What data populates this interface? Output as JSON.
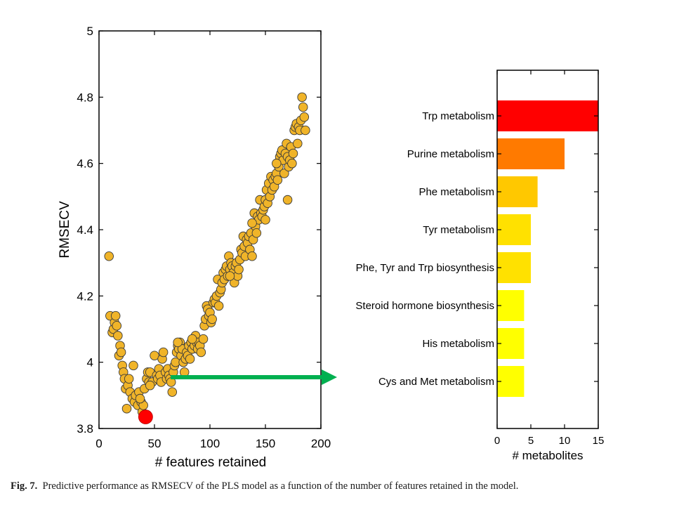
{
  "chart_data": [
    {
      "type": "scatter",
      "xlabel": "# features retained",
      "ylabel": "RMSECV",
      "xlim": [
        0,
        200
      ],
      "ylim": [
        3.8,
        5.0
      ],
      "xticks": [
        "0",
        "50",
        "100",
        "150",
        "200"
      ],
      "yticks": [
        "3.8",
        "4",
        "4.2",
        "4.4",
        "4.6",
        "4.8",
        "5"
      ],
      "grid": false,
      "marker_color": "#f0b429",
      "highlight_color": "#ff0000",
      "highlight_point": {
        "x": 42,
        "y": 3.835
      },
      "points": [
        [
          9,
          4.32
        ],
        [
          10,
          4.14
        ],
        [
          12,
          4.09
        ],
        [
          13,
          4.1
        ],
        [
          14,
          4.12
        ],
        [
          15,
          4.14
        ],
        [
          16,
          4.11
        ],
        [
          17,
          4.08
        ],
        [
          18,
          4.02
        ],
        [
          19,
          4.05
        ],
        [
          20,
          4.03
        ],
        [
          21,
          3.99
        ],
        [
          22,
          3.97
        ],
        [
          23,
          3.95
        ],
        [
          24,
          3.92
        ],
        [
          25,
          3.86
        ],
        [
          26,
          3.93
        ],
        [
          27,
          3.95
        ],
        [
          28,
          3.91
        ],
        [
          30,
          3.89
        ],
        [
          31,
          3.99
        ],
        [
          32,
          3.88
        ],
        [
          33,
          3.9
        ],
        [
          35,
          3.87
        ],
        [
          36,
          3.91
        ],
        [
          38,
          3.88
        ],
        [
          39,
          3.85
        ],
        [
          40,
          3.87
        ],
        [
          41,
          3.92
        ],
        [
          43,
          3.95
        ],
        [
          44,
          3.97
        ],
        [
          45,
          3.94
        ],
        [
          46,
          3.97
        ],
        [
          48,
          3.94
        ],
        [
          50,
          4.02
        ],
        [
          52,
          3.96
        ],
        [
          53,
          3.95
        ],
        [
          54,
          3.98
        ],
        [
          55,
          3.96
        ],
        [
          56,
          3.94
        ],
        [
          57,
          4.01
        ],
        [
          58,
          4.03
        ],
        [
          60,
          3.97
        ],
        [
          61,
          3.95
        ],
        [
          62,
          3.98
        ],
        [
          63,
          3.96
        ],
        [
          64,
          3.95
        ],
        [
          65,
          3.94
        ],
        [
          66,
          3.91
        ],
        [
          67,
          3.97
        ],
        [
          68,
          3.99
        ],
        [
          69,
          4.0
        ],
        [
          70,
          4.03
        ],
        [
          71,
          4.05
        ],
        [
          72,
          4.04
        ],
        [
          73,
          4.06
        ],
        [
          74,
          4.02
        ],
        [
          75,
          4.04
        ],
        [
          76,
          4.0
        ],
        [
          77,
          3.97
        ],
        [
          78,
          4.01
        ],
        [
          79,
          4.03
        ],
        [
          80,
          4.02
        ],
        [
          81,
          4.05
        ],
        [
          82,
          4.01
        ],
        [
          83,
          4.06
        ],
        [
          84,
          4.04
        ],
        [
          85,
          4.07
        ],
        [
          86,
          4.05
        ],
        [
          87,
          4.08
        ],
        [
          88,
          4.06
        ],
        [
          89,
          4.04
        ],
        [
          90,
          4.06
        ],
        [
          91,
          4.05
        ],
        [
          92,
          4.03
        ],
        [
          94,
          4.07
        ],
        [
          95,
          4.11
        ],
        [
          96,
          4.13
        ],
        [
          97,
          4.17
        ],
        [
          98,
          4.16
        ],
        [
          99,
          4.14
        ],
        [
          100,
          4.15
        ],
        [
          101,
          4.12
        ],
        [
          102,
          4.13
        ],
        [
          103,
          4.18
        ],
        [
          104,
          4.19
        ],
        [
          105,
          4.18
        ],
        [
          106,
          4.2
        ],
        [
          107,
          4.25
        ],
        [
          108,
          4.17
        ],
        [
          109,
          4.21
        ],
        [
          110,
          4.22
        ],
        [
          111,
          4.24
        ],
        [
          112,
          4.27
        ],
        [
          113,
          4.25
        ],
        [
          114,
          4.28
        ],
        [
          115,
          4.29
        ],
        [
          116,
          4.26
        ],
        [
          117,
          4.32
        ],
        [
          118,
          4.28
        ],
        [
          119,
          4.3
        ],
        [
          120,
          4.29
        ],
        [
          121,
          4.27
        ],
        [
          122,
          4.24
        ],
        [
          123,
          4.29
        ],
        [
          124,
          4.3
        ],
        [
          125,
          4.26
        ],
        [
          126,
          4.28
        ],
        [
          127,
          4.31
        ],
        [
          128,
          4.34
        ],
        [
          129,
          4.33
        ],
        [
          130,
          4.38
        ],
        [
          131,
          4.35
        ],
        [
          132,
          4.32
        ],
        [
          133,
          4.37
        ],
        [
          134,
          4.36
        ],
        [
          135,
          4.38
        ],
        [
          136,
          4.34
        ],
        [
          137,
          4.39
        ],
        [
          138,
          4.32
        ],
        [
          139,
          4.37
        ],
        [
          140,
          4.45
        ],
        [
          141,
          4.41
        ],
        [
          142,
          4.39
        ],
        [
          143,
          4.44
        ],
        [
          144,
          4.43
        ],
        [
          145,
          4.49
        ],
        [
          146,
          4.45
        ],
        [
          147,
          4.44
        ],
        [
          148,
          4.46
        ],
        [
          149,
          4.47
        ],
        [
          150,
          4.49
        ],
        [
          151,
          4.52
        ],
        [
          152,
          4.48
        ],
        [
          153,
          4.54
        ],
        [
          154,
          4.5
        ],
        [
          155,
          4.56
        ],
        [
          156,
          4.52
        ],
        [
          157,
          4.55
        ],
        [
          158,
          4.53
        ],
        [
          159,
          4.56
        ],
        [
          160,
          4.57
        ],
        [
          161,
          4.55
        ],
        [
          162,
          4.59
        ],
        [
          163,
          4.62
        ],
        [
          164,
          4.63
        ],
        [
          165,
          4.64
        ],
        [
          166,
          4.61
        ],
        [
          167,
          4.57
        ],
        [
          168,
          4.63
        ],
        [
          169,
          4.66
        ],
        [
          170,
          4.62
        ],
        [
          171,
          4.59
        ],
        [
          172,
          4.61
        ],
        [
          173,
          4.65
        ],
        [
          174,
          4.6
        ],
        [
          175,
          4.63
        ],
        [
          176,
          4.7
        ],
        [
          177,
          4.71
        ],
        [
          178,
          4.72
        ],
        [
          179,
          4.66
        ],
        [
          180,
          4.71
        ],
        [
          181,
          4.7
        ],
        [
          182,
          4.73
        ],
        [
          183,
          4.8
        ],
        [
          184,
          4.77
        ],
        [
          185,
          4.74
        ],
        [
          186,
          4.7
        ],
        [
          170,
          4.49
        ],
        [
          160,
          4.6
        ],
        [
          150,
          4.43
        ],
        [
          138,
          4.42
        ],
        [
          118,
          4.26
        ],
        [
          84,
          4.07
        ],
        [
          71,
          4.06
        ],
        [
          46,
          3.93
        ],
        [
          37,
          3.89
        ]
      ]
    },
    {
      "type": "bar",
      "orientation": "horizontal",
      "xlabel": "# metabolites",
      "xlim": [
        0,
        15
      ],
      "xticks": [
        "0",
        "5",
        "10",
        "15"
      ],
      "grid": false,
      "categories": [
        "Trp metabolism",
        "Purine metabolism",
        "Phe metabolism",
        "Tyr metabolism",
        "Phe, Tyr and Trp biosynthesis",
        "Steroid hormone biosynthesis",
        "His metabolism",
        "Cys and Met metabolism"
      ],
      "values": [
        15,
        10,
        6,
        5,
        5,
        4,
        4,
        4
      ],
      "colors": [
        "#ff0000",
        "#ff7a00",
        "#ffc800",
        "#ffe100",
        "#ffe100",
        "#ffff00",
        "#ffff00",
        "#ffff00"
      ]
    }
  ],
  "arrow_color": "#00b050",
  "caption": {
    "label": "Fig. 7.",
    "text": "Predictive performance as RMSECV of the PLS model as a function of the number of features retained in the model."
  }
}
